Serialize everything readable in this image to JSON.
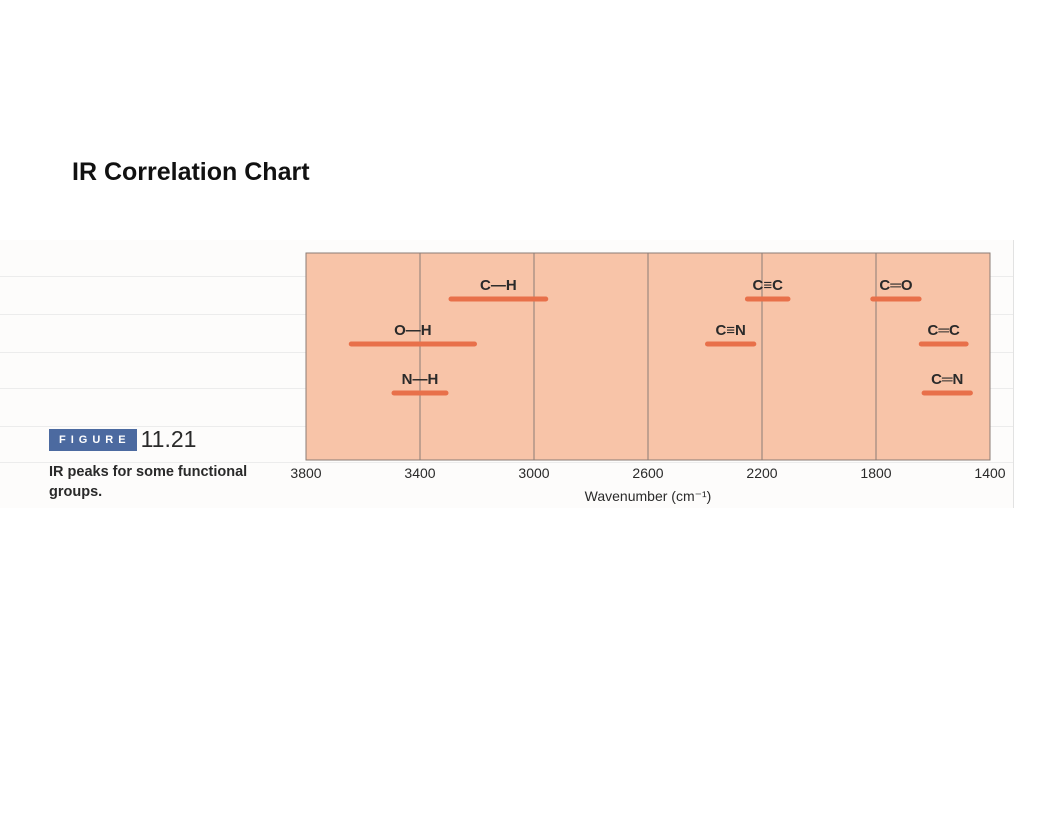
{
  "slide_title": "IR Correlation Chart",
  "figure": {
    "badge": "FIGURE",
    "number": "11.21",
    "caption": "IR peaks for some functional groups."
  },
  "colors": {
    "panel": "#f8c4a8",
    "band": "#e8704a",
    "grid": "#8a7c76",
    "text": "#2a2a2a"
  },
  "chart_data": {
    "type": "range",
    "title": "",
    "xlabel": "Wavenumber (cm⁻¹)",
    "xlim": [
      3800,
      1400
    ],
    "x_reversed": true,
    "xticks": [
      3800,
      3400,
      3000,
      2600,
      2200,
      1800,
      1400
    ],
    "bands": [
      {
        "label": "C—H",
        "min": 2950,
        "max": 3300,
        "row": 1
      },
      {
        "label": "C≡C",
        "min": 2100,
        "max": 2260,
        "row": 1
      },
      {
        "label": "C═O",
        "min": 1640,
        "max": 1820,
        "row": 1
      },
      {
        "label": "O—H",
        "min": 3200,
        "max": 3650,
        "row": 2
      },
      {
        "label": "C≡N",
        "min": 2220,
        "max": 2400,
        "row": 2
      },
      {
        "label": "C═C",
        "min": 1475,
        "max": 1650,
        "row": 2
      },
      {
        "label": "N—H",
        "min": 3300,
        "max": 3500,
        "row": 3
      },
      {
        "label": "C═N",
        "min": 1460,
        "max": 1640,
        "row": 3
      }
    ]
  }
}
